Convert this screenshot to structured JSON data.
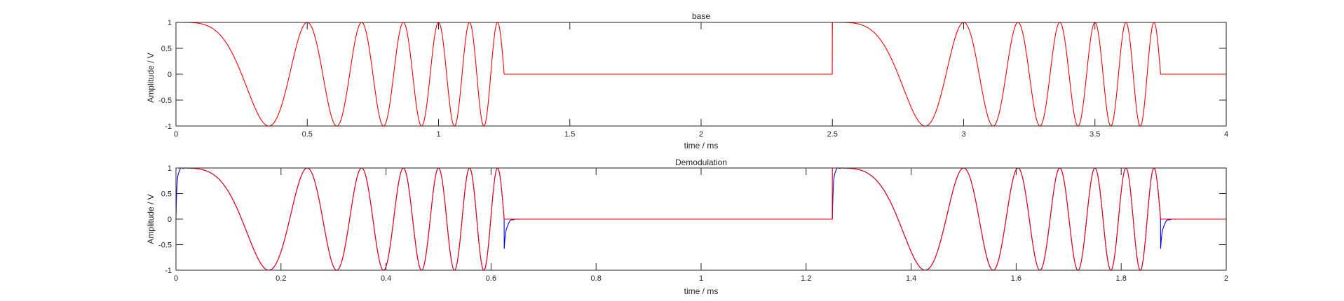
{
  "chart_data": [
    {
      "type": "line",
      "title": "base",
      "xlabel": "time / ms",
      "ylabel": "Amplitude / V",
      "xlim": [
        0,
        4
      ],
      "ylim": [
        -1,
        1
      ],
      "xticks": [
        0,
        0.5,
        1,
        1.5,
        2,
        2.5,
        3,
        3.5,
        4
      ],
      "yticks": [
        -1,
        -0.5,
        0,
        0.5,
        1
      ],
      "xtick_labels": [
        "0",
        "0.5",
        "1",
        "1.5",
        "2",
        "2.5",
        "3",
        "3.5",
        "4"
      ],
      "ytick_labels": [
        "-1",
        "-0.5",
        "0",
        "0.5",
        "1"
      ],
      "grid": false,
      "colors": {
        "series": "#ff0000"
      },
      "series": [
        {
          "color": "#ff0000",
          "description": "linear chirp cos(2π·k·t²), k≈4/ms², on during 0–1.25 ms and 2.5–3.75 ms, zero otherwise",
          "bursts": [
            [
              0,
              1.25
            ],
            [
              2.5,
              3.75
            ]
          ],
          "chirp_rate": 4
        }
      ]
    },
    {
      "type": "line",
      "title": "Demodulation",
      "xlabel": "time / ms",
      "ylabel": "Amplitude / V",
      "xlim": [
        0,
        2
      ],
      "ylim": [
        -1,
        1
      ],
      "xticks": [
        0,
        0.2,
        0.4,
        0.6,
        0.8,
        1,
        1.2,
        1.4,
        1.6,
        1.8,
        2
      ],
      "yticks": [
        -1,
        -0.5,
        0,
        0.5,
        1
      ],
      "xtick_labels": [
        "0",
        "0.2",
        "0.4",
        "0.6",
        "0.8",
        "1",
        "1.2",
        "1.4",
        "1.6",
        "1.8",
        "2"
      ],
      "ytick_labels": [
        "-1",
        "-0.5",
        "0",
        "0.5",
        "1"
      ],
      "grid": false,
      "colors": {
        "demodulated": "#0000ff",
        "reference": "#ff0000"
      },
      "series": [
        {
          "color": "#0000ff",
          "description": "demodulated signal with small ringing at the burst edges",
          "bursts": [
            [
              0,
              0.625
            ],
            [
              1.25,
              1.875
            ]
          ],
          "chirp_rate": 16
        },
        {
          "color": "#ff0000",
          "description": "reference chirp cos(2π·k·t²), k≈16/ms², on during 0–0.625 ms and 1.25–1.875 ms",
          "bursts": [
            [
              0,
              0.625
            ],
            [
              1.25,
              1.875
            ]
          ],
          "chirp_rate": 16
        }
      ]
    }
  ]
}
